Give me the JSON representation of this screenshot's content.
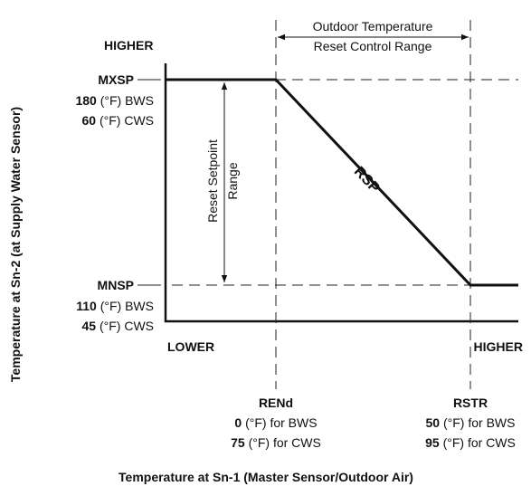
{
  "y_axis": {
    "title": "Temperature at Sn-2 (at Supply Water Sensor)",
    "high": "HIGHER",
    "low": "LOWER",
    "max": {
      "label": "MXSP",
      "bws": {
        "value": "180",
        "unit": "(°F) BWS"
      },
      "cws": {
        "value": "60",
        "unit": "(°F) CWS"
      }
    },
    "min": {
      "label": "MNSP",
      "bws": {
        "value": "110",
        "unit": "(°F) BWS"
      },
      "cws": {
        "value": "45",
        "unit": "(°F) CWS"
      }
    }
  },
  "x_axis": {
    "title": "Temperature at Sn-1 (Master Sensor/Outdoor Air)",
    "high": "HIGHER",
    "end": {
      "label": "RENd",
      "bws": {
        "value": "0",
        "unit": "(°F) for BWS"
      },
      "cws": {
        "value": "75",
        "unit": "(°F) for CWS"
      }
    },
    "start": {
      "label": "RSTR",
      "bws": {
        "value": "50",
        "unit": "(°F) for BWS"
      },
      "cws": {
        "value": "95",
        "unit": "(°F) for CWS"
      }
    }
  },
  "control_range": {
    "line1": "Outdoor Temperature",
    "line2": "Reset Control Range"
  },
  "setpoint_range": {
    "line1": "Reset Setpoint",
    "line2": "Range"
  },
  "curve_label": "RSP"
}
